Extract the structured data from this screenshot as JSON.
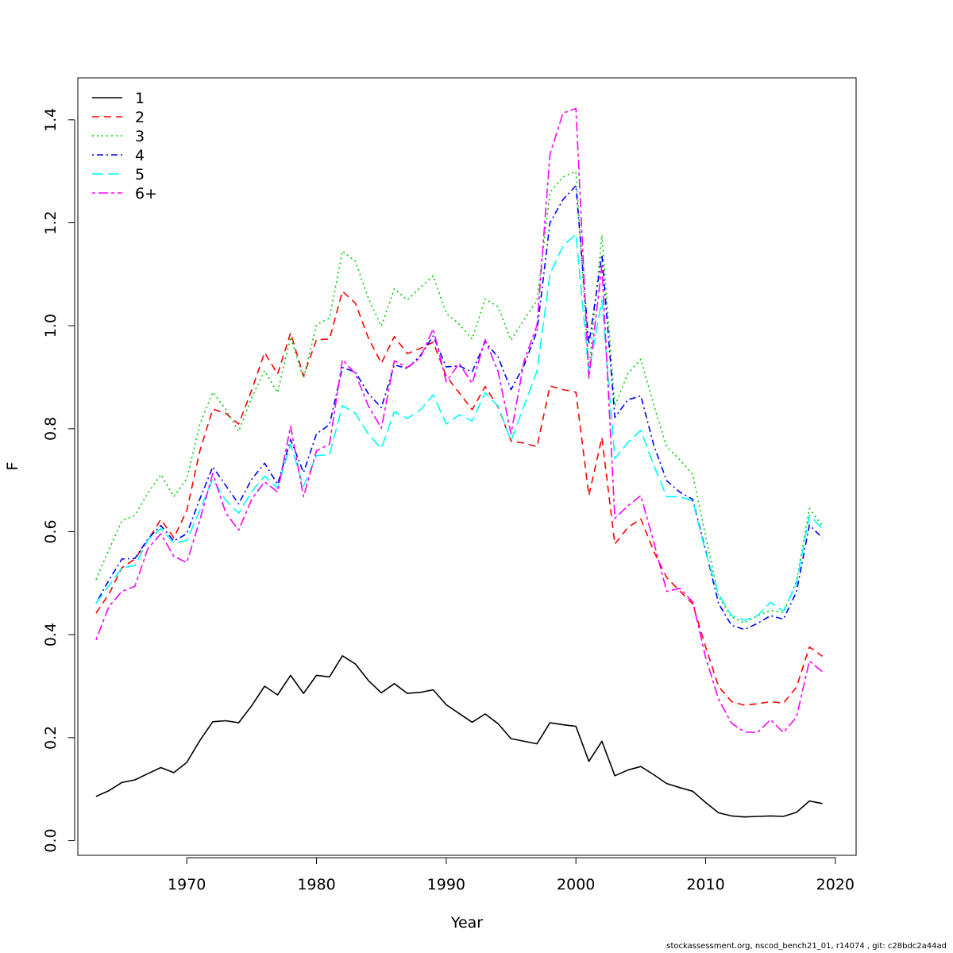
{
  "chart_data": {
    "type": "line",
    "title": "",
    "xlabel": "Year",
    "ylabel": "F",
    "xlim": [
      1961.6,
      2021.6
    ],
    "ylim": [
      -0.0285,
      1.4815
    ],
    "x_ticks": [
      1970,
      1980,
      1990,
      2000,
      2010,
      2020
    ],
    "y_ticks": [
      0.0,
      0.2,
      0.4,
      0.6,
      0.8,
      1.0,
      1.2,
      1.4
    ],
    "y_tick_labels": [
      "0.0",
      "0.2",
      "0.4",
      "0.6",
      "0.8",
      "1.0",
      "1.2",
      "1.4"
    ],
    "legend_position": "top-left",
    "grid": false,
    "x": [
      1963,
      1964,
      1965,
      1966,
      1967,
      1968,
      1969,
      1970,
      1971,
      1972,
      1973,
      1974,
      1975,
      1976,
      1977,
      1978,
      1979,
      1980,
      1981,
      1982,
      1983,
      1984,
      1985,
      1986,
      1987,
      1988,
      1989,
      1990,
      1991,
      1992,
      1993,
      1994,
      1995,
      1996,
      1997,
      1998,
      1999,
      2000,
      2001,
      2002,
      2003,
      2004,
      2005,
      2006,
      2007,
      2008,
      2009,
      2010,
      2011,
      2012,
      2013,
      2014,
      2015,
      2016,
      2017,
      2018,
      2019
    ],
    "series": [
      {
        "name": "1",
        "color": "#000000",
        "dash": "solid",
        "values": [
          0.086,
          0.097,
          0.113,
          0.118,
          0.13,
          0.142,
          0.132,
          0.152,
          0.194,
          0.231,
          0.233,
          0.229,
          0.262,
          0.3,
          0.283,
          0.321,
          0.286,
          0.321,
          0.318,
          0.359,
          0.343,
          0.311,
          0.287,
          0.305,
          0.286,
          0.288,
          0.293,
          0.264,
          0.247,
          0.23,
          0.246,
          0.227,
          0.198,
          0.193,
          0.188,
          0.229,
          0.225,
          0.222,
          0.154,
          0.193,
          0.126,
          0.137,
          0.144,
          0.128,
          0.111,
          0.103,
          0.096,
          0.074,
          0.054,
          0.048,
          0.046,
          0.047,
          0.048,
          0.047,
          0.055,
          0.077,
          0.072
        ]
      },
      {
        "name": "2",
        "color": "#ff0000",
        "dash": "dashed",
        "values": [
          0.442,
          0.479,
          0.53,
          0.547,
          0.583,
          0.624,
          0.588,
          0.641,
          0.756,
          0.838,
          0.83,
          0.809,
          0.875,
          0.948,
          0.906,
          0.986,
          0.902,
          0.973,
          0.974,
          1.067,
          1.044,
          0.976,
          0.927,
          0.979,
          0.946,
          0.956,
          0.968,
          0.902,
          0.87,
          0.837,
          0.882,
          0.842,
          0.776,
          0.772,
          0.765,
          0.883,
          0.876,
          0.871,
          0.67,
          0.783,
          0.576,
          0.608,
          0.625,
          0.562,
          0.511,
          0.485,
          0.46,
          0.376,
          0.299,
          0.27,
          0.263,
          0.266,
          0.27,
          0.267,
          0.298,
          0.376,
          0.358
        ]
      },
      {
        "name": "3",
        "color": "#00cd00",
        "dash": "dotted",
        "values": [
          0.507,
          0.565,
          0.621,
          0.632,
          0.675,
          0.711,
          0.668,
          0.703,
          0.808,
          0.871,
          0.838,
          0.795,
          0.86,
          0.913,
          0.87,
          0.978,
          0.898,
          1.002,
          1.015,
          1.145,
          1.125,
          1.053,
          0.999,
          1.072,
          1.05,
          1.074,
          1.097,
          1.024,
          1.003,
          0.974,
          1.052,
          1.037,
          0.972,
          1.012,
          1.049,
          1.259,
          1.289,
          1.3,
          0.915,
          1.176,
          0.844,
          0.907,
          0.935,
          0.846,
          0.765,
          0.74,
          0.711,
          0.592,
          0.474,
          0.434,
          0.423,
          0.437,
          0.447,
          0.443,
          0.504,
          0.645,
          0.611
        ]
      },
      {
        "name": "4",
        "color": "#0000ff",
        "dash": "dotdash",
        "values": [
          0.461,
          0.506,
          0.547,
          0.548,
          0.586,
          0.612,
          0.582,
          0.596,
          0.663,
          0.726,
          0.69,
          0.654,
          0.702,
          0.733,
          0.692,
          0.779,
          0.715,
          0.79,
          0.808,
          0.919,
          0.91,
          0.868,
          0.841,
          0.924,
          0.917,
          0.942,
          0.98,
          0.92,
          0.922,
          0.91,
          0.969,
          0.939,
          0.876,
          0.923,
          0.99,
          1.2,
          1.245,
          1.272,
          0.964,
          1.138,
          0.822,
          0.856,
          0.864,
          0.768,
          0.699,
          0.677,
          0.663,
          0.564,
          0.46,
          0.418,
          0.41,
          0.422,
          0.437,
          0.43,
          0.483,
          0.613,
          0.588
        ]
      },
      {
        "name": "5",
        "color": "#00ffff",
        "dash": "longdash",
        "values": [
          0.461,
          0.495,
          0.53,
          0.534,
          0.584,
          0.606,
          0.578,
          0.583,
          0.641,
          0.702,
          0.661,
          0.636,
          0.678,
          0.708,
          0.685,
          0.77,
          0.688,
          0.748,
          0.75,
          0.845,
          0.83,
          0.789,
          0.762,
          0.833,
          0.82,
          0.836,
          0.866,
          0.809,
          0.827,
          0.815,
          0.87,
          0.844,
          0.776,
          0.845,
          0.912,
          1.1,
          1.155,
          1.178,
          0.91,
          1.05,
          0.742,
          0.773,
          0.797,
          0.729,
          0.668,
          0.668,
          0.66,
          0.56,
          0.478,
          0.437,
          0.428,
          0.437,
          0.463,
          0.446,
          0.499,
          0.632,
          0.606
        ]
      },
      {
        "name": "6+",
        "color": "#ff00ff",
        "dash": "twodash",
        "values": [
          0.39,
          0.455,
          0.484,
          0.494,
          0.567,
          0.596,
          0.552,
          0.54,
          0.622,
          0.713,
          0.637,
          0.603,
          0.663,
          0.697,
          0.677,
          0.805,
          0.668,
          0.757,
          0.77,
          0.934,
          0.907,
          0.844,
          0.801,
          0.932,
          0.919,
          0.938,
          0.994,
          0.891,
          0.927,
          0.888,
          0.973,
          0.911,
          0.79,
          0.931,
          1.001,
          1.333,
          1.413,
          1.422,
          0.898,
          1.117,
          0.626,
          0.65,
          0.67,
          0.58,
          0.484,
          0.49,
          0.464,
          0.356,
          0.274,
          0.228,
          0.211,
          0.21,
          0.235,
          0.21,
          0.24,
          0.349,
          0.328
        ]
      }
    ]
  },
  "footer_text": "stockassessment.org, nscod_bench21_01, r14074 , git: c28bdc2a44ad"
}
